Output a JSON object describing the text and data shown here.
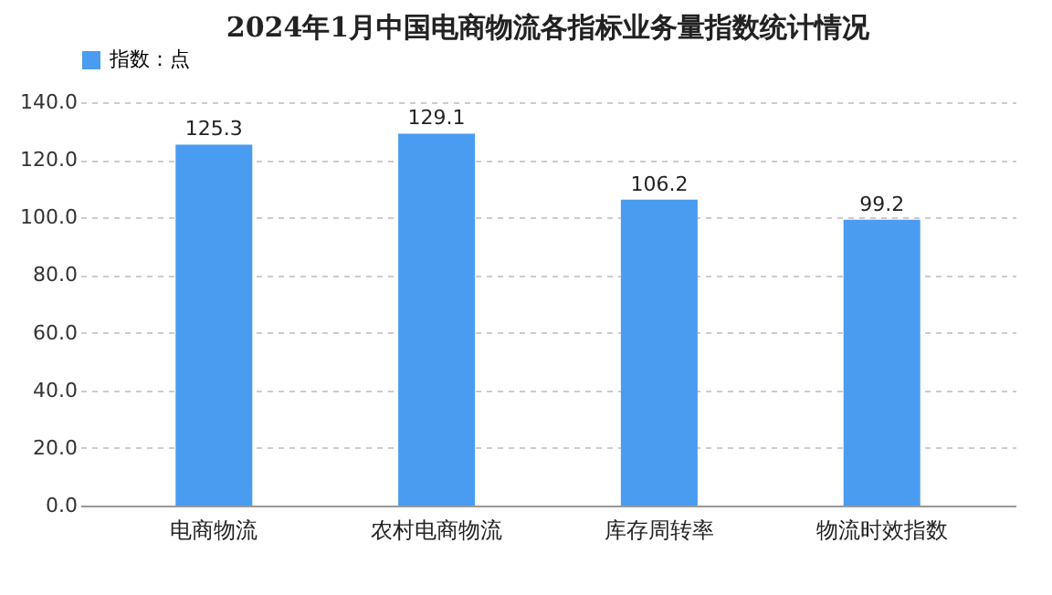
{
  "chart_data": {
    "type": "bar",
    "title": "2024年1月中国电商物流各指标业务量指数统计情况",
    "categories": [
      "电商物流",
      "农村电商物流",
      "库存周转率",
      "物流时效指数"
    ],
    "series": [
      {
        "name": "指数：点",
        "color": "#4a9cf0",
        "values": [
          125.3,
          129.1,
          106.2,
          99.2
        ]
      }
    ],
    "ylim": [
      0,
      140
    ],
    "yticks": [
      {
        "value": 0,
        "label": "0.0"
      },
      {
        "value": 20,
        "label": "20.0"
      },
      {
        "value": 40,
        "label": "40.0"
      },
      {
        "value": 60,
        "label": "60.0"
      },
      {
        "value": 80,
        "label": "80.0"
      },
      {
        "value": 100,
        "label": "100.0"
      },
      {
        "value": 120,
        "label": "120.0"
      },
      {
        "value": 140,
        "label": "140.0"
      }
    ],
    "grid": "y",
    "legend": "top",
    "data_labels": true
  }
}
